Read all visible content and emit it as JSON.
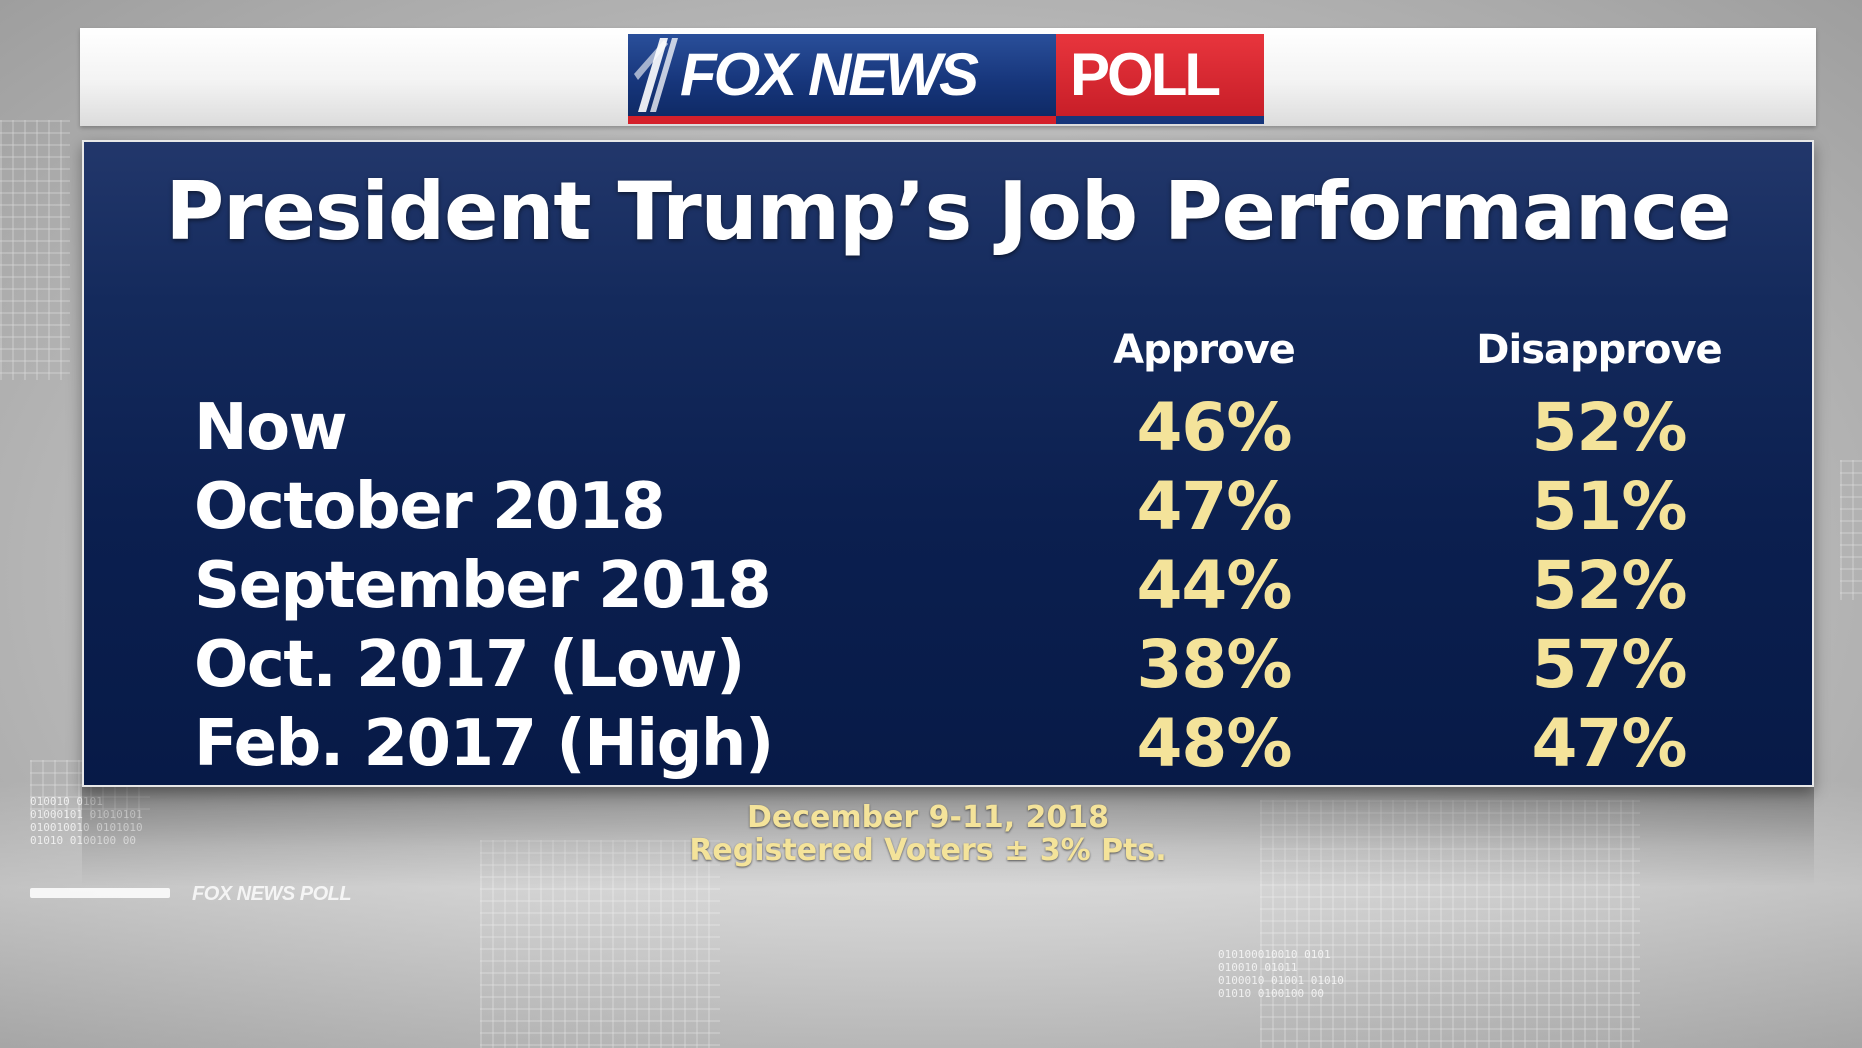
{
  "brand": {
    "logo_left": "FOX NEWS",
    "logo_right": "POLL",
    "colors": {
      "fox_blue": "#16357a",
      "poll_red": "#d4202a",
      "panel_navy": "#0b1f4f",
      "value_yellow": "#f4e39a"
    }
  },
  "chart_data": {
    "type": "table",
    "title": "President Trump’s Job Performance",
    "columns": [
      "Approve",
      "Disapprove"
    ],
    "rows": [
      {
        "label": "Now",
        "approve": "46%",
        "disapprove": "52%"
      },
      {
        "label": "October 2018",
        "approve": "47%",
        "disapprove": "51%"
      },
      {
        "label": "September 2018",
        "approve": "44%",
        "disapprove": "52%"
      },
      {
        "label": "Oct. 2017 (Low)",
        "approve": "38%",
        "disapprove": "57%"
      },
      {
        "label": "Feb. 2017 (High)",
        "approve": "48%",
        "disapprove": "47%"
      }
    ],
    "footnote": {
      "dates": "December 9-11, 2018",
      "sample": "Registered Voters ± 3% Pts."
    }
  },
  "background": {
    "watermark": "FOX NEWS POLL",
    "binary_left": "010010 0101\n01000101 01010101\n010010010 0101010\n01010 0100100 00",
    "binary_right": "010100010010 0101\n010010 01011\n0100010 01001 01010\n01010 0100100 00"
  }
}
